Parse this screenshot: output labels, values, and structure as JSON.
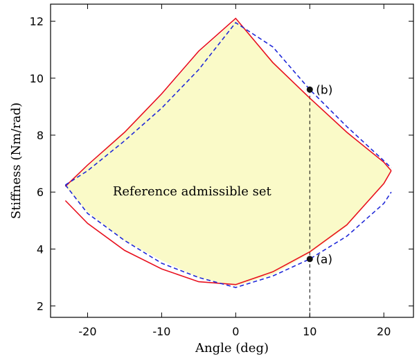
{
  "chart_data": {
    "type": "line",
    "xlabel": "Angle (deg)",
    "ylabel": "Stiffness (Nm/rad)",
    "xlim": [
      -25,
      24
    ],
    "ylim": [
      1.6,
      12.6
    ],
    "xticks": [
      -20,
      -10,
      0,
      10,
      20
    ],
    "yticks": [
      2,
      4,
      6,
      8,
      10,
      12
    ],
    "grid": false,
    "region": {
      "label": "Reference admissible set",
      "fill": "#fafac8",
      "upper": [
        [
          -23,
          6.2
        ],
        [
          -20,
          6.9
        ],
        [
          -15,
          8.1
        ],
        [
          -10,
          9.4
        ],
        [
          -5,
          10.9
        ],
        [
          0,
          12.05
        ],
        [
          5,
          10.6
        ],
        [
          10,
          9.3
        ],
        [
          15,
          8.1
        ],
        [
          20,
          7.0
        ],
        [
          21,
          6.75
        ]
      ],
      "lower": [
        [
          -23,
          6.2
        ],
        [
          -20,
          5.3
        ],
        [
          -15,
          4.3
        ],
        [
          -10,
          3.6
        ],
        [
          -5,
          3.0
        ],
        [
          0,
          2.7
        ],
        [
          5,
          3.1
        ],
        [
          10,
          3.85
        ],
        [
          15,
          4.8
        ],
        [
          20,
          6.3
        ],
        [
          21,
          6.75
        ]
      ]
    },
    "series": [
      {
        "color": "#e8101e",
        "style": "solid",
        "upper": [
          [
            -23,
            6.2
          ],
          [
            -20,
            6.95
          ],
          [
            -15,
            8.1
          ],
          [
            -10,
            9.45
          ],
          [
            -5,
            10.95
          ],
          [
            0,
            12.1
          ],
          [
            5,
            10.55
          ],
          [
            10,
            9.3
          ],
          [
            15,
            8.1
          ],
          [
            20,
            7.05
          ],
          [
            21,
            6.75
          ]
        ],
        "lower": [
          [
            -23,
            5.7
          ],
          [
            -20,
            4.9
          ],
          [
            -15,
            3.95
          ],
          [
            -10,
            3.3
          ],
          [
            -5,
            2.85
          ],
          [
            0,
            2.75
          ],
          [
            5,
            3.2
          ],
          [
            10,
            3.9
          ],
          [
            15,
            4.85
          ],
          [
            20,
            6.3
          ],
          [
            21,
            6.75
          ]
        ]
      },
      {
        "color": "#1f28d8",
        "style": "dashed",
        "upper": [
          [
            -23,
            6.25
          ],
          [
            -20,
            6.75
          ],
          [
            -15,
            7.8
          ],
          [
            -10,
            8.95
          ],
          [
            -5,
            10.3
          ],
          [
            0,
            11.95
          ],
          [
            5,
            11.1
          ],
          [
            10,
            9.6
          ],
          [
            15,
            8.3
          ],
          [
            20,
            7.1
          ],
          [
            21,
            6.85
          ]
        ],
        "lower": [
          [
            -23,
            6.25
          ],
          [
            -20,
            5.25
          ],
          [
            -15,
            4.3
          ],
          [
            -10,
            3.5
          ],
          [
            -5,
            3.0
          ],
          [
            0,
            2.65
          ],
          [
            5,
            3.05
          ],
          [
            10,
            3.65
          ],
          [
            15,
            4.45
          ],
          [
            20,
            5.6
          ],
          [
            21,
            6.0
          ]
        ]
      }
    ],
    "vline": {
      "x": 10,
      "y_from": 1.6,
      "y_to": 9.6
    },
    "points": [
      {
        "label": "(a)",
        "x": 10,
        "y": 3.65
      },
      {
        "label": "(b)",
        "x": 10,
        "y": 9.6
      }
    ]
  }
}
